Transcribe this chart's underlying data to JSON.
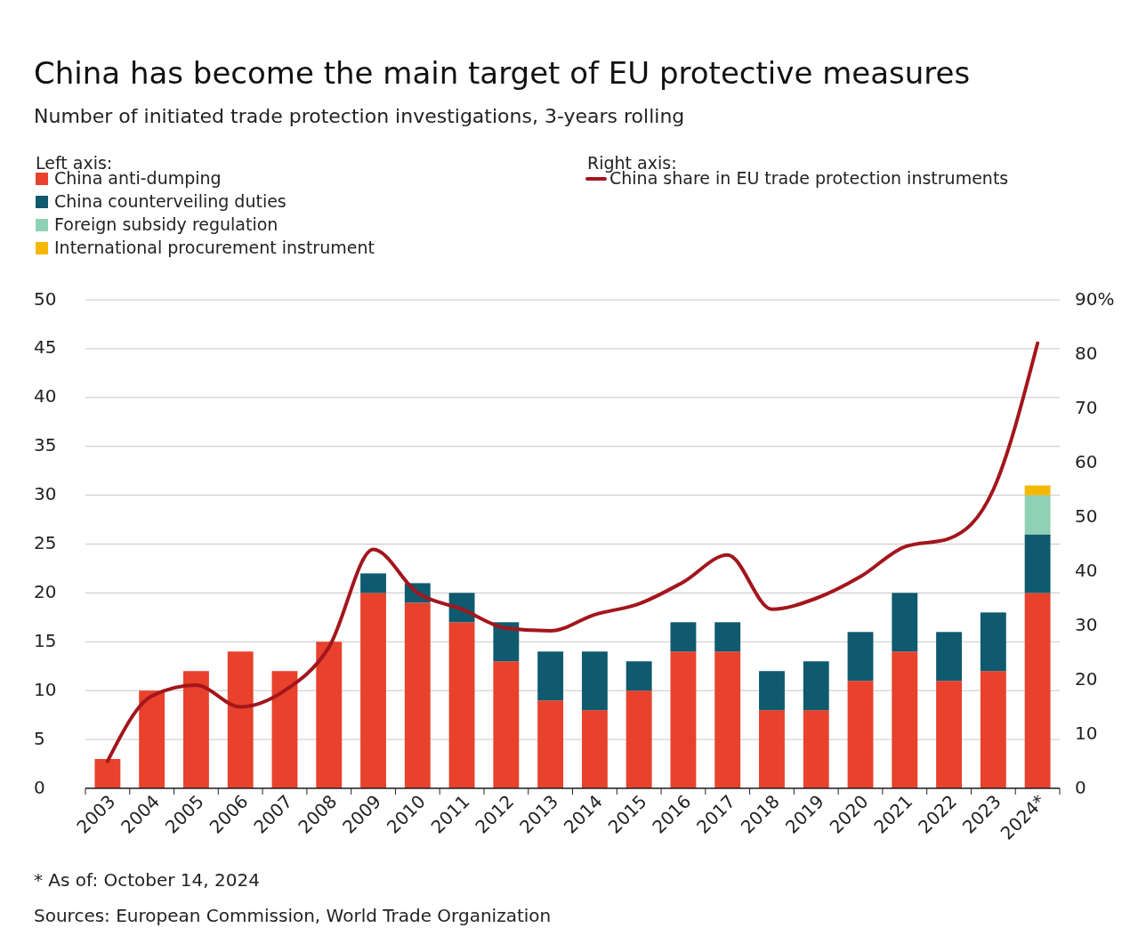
{
  "chart_data": {
    "type": "bar",
    "title": "China has become the main target of EU protective measures",
    "subtitle": "Number of initiated trade protection investigations, 3-years rolling",
    "legend_title": "Left axis:",
    "categories": [
      "2003",
      "2004",
      "2005",
      "2006",
      "2007",
      "2008",
      "2009",
      "2010",
      "2011",
      "2012",
      "2013",
      "2014",
      "2015",
      "2016",
      "2017",
      "2018",
      "2019",
      "2020",
      "2021",
      "2022",
      "2023",
      "2024*"
    ],
    "series": [
      {
        "name": "China anti-dumping",
        "color": "#e8412c",
        "values": [
          3,
          10,
          12,
          14,
          12,
          15,
          20,
          19,
          17,
          13,
          9,
          8,
          10,
          14,
          14,
          8,
          8,
          11,
          14,
          11,
          12,
          20
        ]
      },
      {
        "name": "China counterveiling duties",
        "color": "#0f5a6e",
        "values": [
          0,
          0,
          0,
          0,
          0,
          0,
          2,
          2,
          3,
          4,
          5,
          6,
          3,
          3,
          3,
          4,
          5,
          5,
          6,
          5,
          6,
          6
        ]
      },
      {
        "name": "Foreign subsidy regulation",
        "color": "#8fd1b4",
        "values": [
          0,
          0,
          0,
          0,
          0,
          0,
          0,
          0,
          0,
          0,
          0,
          0,
          0,
          0,
          0,
          0,
          0,
          0,
          0,
          0,
          0,
          4
        ]
      },
      {
        "name": "International procurement instrument",
        "color": "#f5b800",
        "values": [
          0,
          0,
          0,
          0,
          0,
          0,
          0,
          0,
          0,
          0,
          0,
          0,
          0,
          0,
          0,
          0,
          0,
          0,
          0,
          0,
          0,
          1
        ]
      },
      {
        "name": "China share in EU trade protection instruments",
        "type": "line",
        "axis": "y2",
        "color": "#a3161c",
        "values": [
          5,
          17,
          19,
          15,
          18,
          26,
          44,
          36,
          33,
          29.5,
          29,
          32,
          34,
          38,
          43,
          33,
          35,
          39,
          44.5,
          46,
          55,
          82
        ]
      }
    ],
    "stacked": true,
    "ylim": [
      0,
      50
    ],
    "yticks": [
      0,
      5,
      10,
      15,
      20,
      25,
      30,
      35,
      40,
      45,
      50
    ],
    "y2lim": [
      0,
      90
    ],
    "y2ticks": [
      0,
      10,
      20,
      30,
      40,
      50,
      60,
      70,
      80,
      {
        "value": 90,
        "label": "90%"
      }
    ],
    "grid": "y",
    "legend": "top",
    "annotations": [
      "Right axis:",
      "* As of: October 14, 2024",
      "Sources: European Commission, World Trade Organization"
    ]
  }
}
